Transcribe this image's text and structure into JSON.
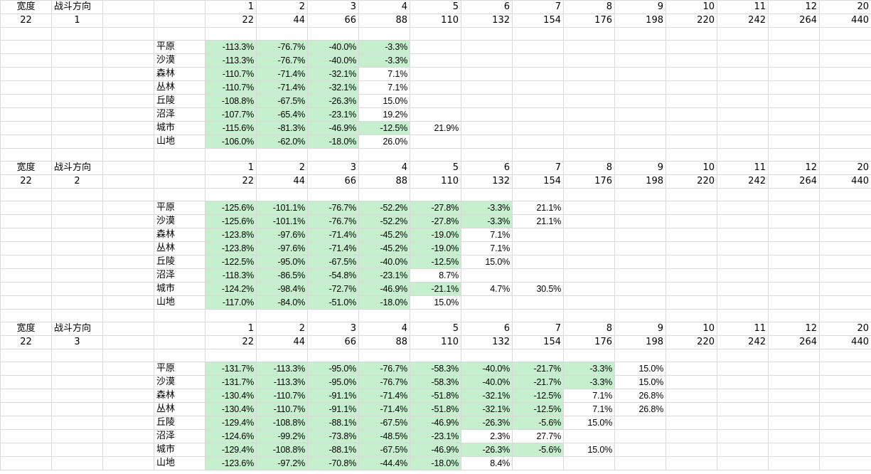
{
  "blocks": [
    {
      "width_label": "宽度",
      "direction_label": "战斗方向",
      "width": 22,
      "direction": 1,
      "columns": [
        1,
        2,
        3,
        4,
        5,
        6,
        7,
        8,
        9,
        10,
        11,
        12,
        20
      ],
      "multipliers": [
        22,
        44,
        66,
        88,
        110,
        132,
        154,
        176,
        198,
        220,
        242,
        264,
        440
      ],
      "terrains": [
        {
          "name": "平原",
          "values": [
            "-113.3%",
            "-76.7%",
            "-40.0%",
            "-3.3%"
          ]
        },
        {
          "name": "沙漠",
          "values": [
            "-113.3%",
            "-76.7%",
            "-40.0%",
            "-3.3%"
          ]
        },
        {
          "name": "森林",
          "values": [
            "-110.7%",
            "-71.4%",
            "-32.1%",
            "7.1%"
          ]
        },
        {
          "name": "丛林",
          "values": [
            "-110.7%",
            "-71.4%",
            "-32.1%",
            "7.1%"
          ]
        },
        {
          "name": "丘陵",
          "values": [
            "-108.8%",
            "-67.5%",
            "-26.3%",
            "15.0%"
          ]
        },
        {
          "name": "沼泽",
          "values": [
            "-107.7%",
            "-65.4%",
            "-23.1%",
            "19.2%"
          ]
        },
        {
          "name": "城市",
          "values": [
            "-115.6%",
            "-81.3%",
            "-46.9%",
            "-12.5%",
            "21.9%"
          ]
        },
        {
          "name": "山地",
          "values": [
            "-106.0%",
            "-62.0%",
            "-18.0%",
            "26.0%"
          ]
        }
      ]
    },
    {
      "width_label": "宽度",
      "direction_label": "战斗方向",
      "width": 22,
      "direction": 2,
      "columns": [
        1,
        2,
        3,
        4,
        5,
        6,
        7,
        8,
        9,
        10,
        11,
        12,
        20
      ],
      "multipliers": [
        22,
        44,
        66,
        88,
        110,
        132,
        154,
        176,
        198,
        220,
        242,
        264,
        440
      ],
      "terrains": [
        {
          "name": "平原",
          "values": [
            "-125.6%",
            "-101.1%",
            "-76.7%",
            "-52.2%",
            "-27.8%",
            "-3.3%",
            "21.1%"
          ]
        },
        {
          "name": "沙漠",
          "values": [
            "-125.6%",
            "-101.1%",
            "-76.7%",
            "-52.2%",
            "-27.8%",
            "-3.3%",
            "21.1%"
          ]
        },
        {
          "name": "森林",
          "values": [
            "-123.8%",
            "-97.6%",
            "-71.4%",
            "-45.2%",
            "-19.0%",
            "7.1%"
          ]
        },
        {
          "name": "丛林",
          "values": [
            "-123.8%",
            "-97.6%",
            "-71.4%",
            "-45.2%",
            "-19.0%",
            "7.1%"
          ]
        },
        {
          "name": "丘陵",
          "values": [
            "-122.5%",
            "-95.0%",
            "-67.5%",
            "-40.0%",
            "-12.5%",
            "15.0%"
          ]
        },
        {
          "name": "沼泽",
          "values": [
            "-118.3%",
            "-86.5%",
            "-54.8%",
            "-23.1%",
            "8.7%"
          ]
        },
        {
          "name": "城市",
          "values": [
            "-124.2%",
            "-98.4%",
            "-72.7%",
            "-46.9%",
            "-21.1%",
            "4.7%",
            "30.5%"
          ]
        },
        {
          "name": "山地",
          "values": [
            "-117.0%",
            "-84.0%",
            "-51.0%",
            "-18.0%",
            "15.0%"
          ]
        }
      ]
    },
    {
      "width_label": "宽度",
      "direction_label": "战斗方向",
      "width": 22,
      "direction": 3,
      "columns": [
        1,
        2,
        3,
        4,
        5,
        6,
        7,
        8,
        9,
        10,
        11,
        12,
        20
      ],
      "multipliers": [
        22,
        44,
        66,
        88,
        110,
        132,
        154,
        176,
        198,
        220,
        242,
        264,
        440
      ],
      "terrains": [
        {
          "name": "平原",
          "values": [
            "-131.7%",
            "-113.3%",
            "-95.0%",
            "-76.7%",
            "-58.3%",
            "-40.0%",
            "-21.7%",
            "-3.3%",
            "15.0%"
          ]
        },
        {
          "name": "沙漠",
          "values": [
            "-131.7%",
            "-113.3%",
            "-95.0%",
            "-76.7%",
            "-58.3%",
            "-40.0%",
            "-21.7%",
            "-3.3%",
            "15.0%"
          ]
        },
        {
          "name": "森林",
          "values": [
            "-130.4%",
            "-110.7%",
            "-91.1%",
            "-71.4%",
            "-51.8%",
            "-32.1%",
            "-12.5%",
            "7.1%",
            "26.8%"
          ]
        },
        {
          "name": "丛林",
          "values": [
            "-130.4%",
            "-110.7%",
            "-91.1%",
            "-71.4%",
            "-51.8%",
            "-32.1%",
            "-12.5%",
            "7.1%",
            "26.8%"
          ]
        },
        {
          "name": "丘陵",
          "values": [
            "-129.4%",
            "-108.8%",
            "-88.1%",
            "-67.5%",
            "-46.9%",
            "-26.3%",
            "-5.6%",
            "15.0%"
          ]
        },
        {
          "name": "沼泽",
          "values": [
            "-124.6%",
            "-99.2%",
            "-73.8%",
            "-48.5%",
            "-23.1%",
            "2.3%",
            "27.7%"
          ]
        },
        {
          "name": "城市",
          "values": [
            "-129.4%",
            "-108.8%",
            "-88.1%",
            "-67.5%",
            "-46.9%",
            "-26.3%",
            "-5.6%",
            "15.0%"
          ]
        },
        {
          "name": "山地",
          "values": [
            "-123.6%",
            "-97.2%",
            "-70.8%",
            "-44.4%",
            "-18.0%",
            "8.4%"
          ]
        }
      ]
    }
  ]
}
